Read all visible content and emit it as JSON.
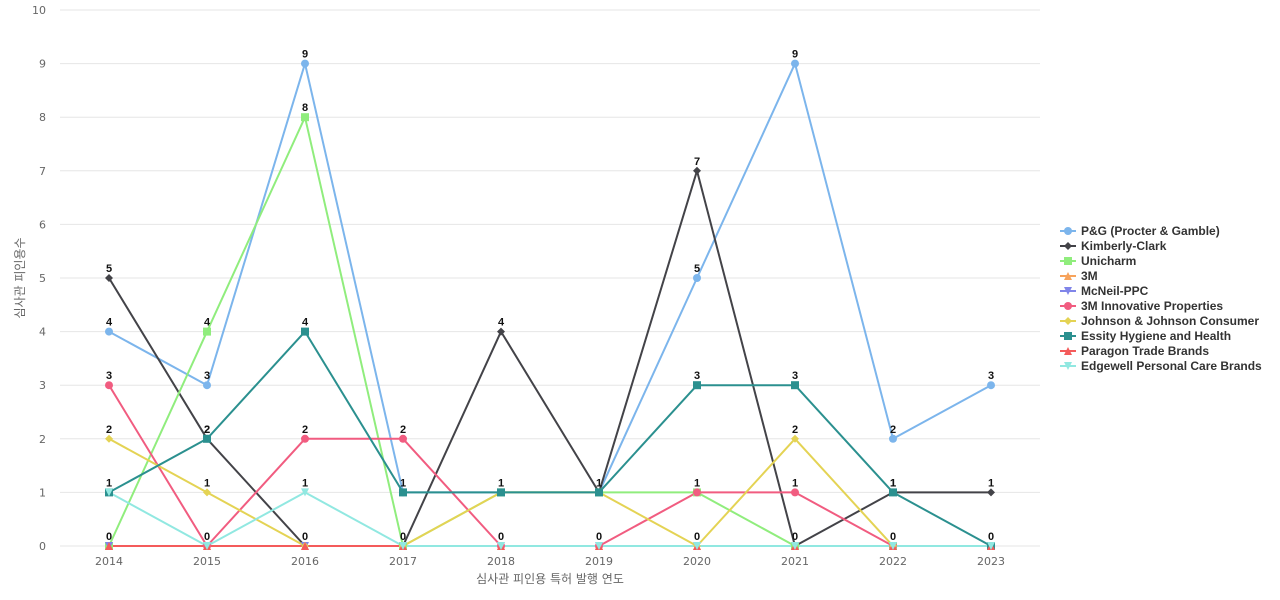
{
  "chart_data": {
    "type": "line",
    "xlabel": "심사관 피인용 특허 발행 연도",
    "ylabel": "심사관 피인용수",
    "ylim": [
      0,
      10
    ],
    "yticks": [
      0,
      1,
      2,
      3,
      4,
      5,
      6,
      7,
      8,
      9,
      10
    ],
    "categories": [
      "2014",
      "2015",
      "2016",
      "2017",
      "2018",
      "2019",
      "2020",
      "2021",
      "2022",
      "2023"
    ],
    "grid": true,
    "legend_position": "right",
    "series": [
      {
        "name": "P&G (Procter & Gamble)",
        "color": "#7cb5ec",
        "marker": "circle",
        "values": [
          4,
          3,
          9,
          1,
          1,
          1,
          5,
          9,
          2,
          3
        ]
      },
      {
        "name": "Kimberly-Clark",
        "color": "#434348",
        "marker": "diamond",
        "values": [
          5,
          2,
          0,
          0,
          4,
          1,
          7,
          0,
          1,
          1
        ]
      },
      {
        "name": "Unicharm",
        "color": "#90ed7d",
        "marker": "square",
        "values": [
          0,
          4,
          8,
          0,
          1,
          1,
          1,
          0,
          0,
          0
        ]
      },
      {
        "name": "3M",
        "color": "#f7a35c",
        "marker": "triangle",
        "values": [
          0,
          0,
          0,
          0,
          0,
          0,
          0,
          0,
          0,
          0
        ]
      },
      {
        "name": "McNeil-PPC",
        "color": "#8085e9",
        "marker": "triangle-down",
        "values": [
          0,
          0,
          0,
          0,
          0,
          0,
          0,
          0,
          0,
          0
        ]
      },
      {
        "name": "3M Innovative Properties",
        "color": "#f15c80",
        "marker": "circle",
        "values": [
          3,
          0,
          2,
          2,
          0,
          0,
          1,
          1,
          0,
          0
        ]
      },
      {
        "name": "Johnson & Johnson Consumer",
        "color": "#e4d354",
        "marker": "diamond",
        "values": [
          2,
          1,
          0,
          0,
          1,
          1,
          0,
          2,
          0,
          0
        ]
      },
      {
        "name": "Essity Hygiene and Health",
        "color": "#2b908f",
        "marker": "square",
        "values": [
          1,
          2,
          4,
          1,
          1,
          1,
          3,
          3,
          1,
          0
        ]
      },
      {
        "name": "Paragon Trade Brands",
        "color": "#f45b5b",
        "marker": "triangle",
        "values": [
          0,
          0,
          0,
          0,
          0,
          0,
          0,
          0,
          0,
          0
        ]
      },
      {
        "name": "Edgewell Personal Care Brands",
        "color": "#91e8e1",
        "marker": "triangle-down",
        "values": [
          1,
          0,
          1,
          0,
          0,
          0,
          0,
          0,
          0,
          0
        ]
      }
    ],
    "data_labels": [
      {
        "series": 0,
        "index": 0,
        "text": "4"
      },
      {
        "series": 0,
        "index": 1,
        "text": "3"
      },
      {
        "series": 0,
        "index": 2,
        "text": "9"
      },
      {
        "series": 0,
        "index": 6,
        "text": "5"
      },
      {
        "series": 0,
        "index": 7,
        "text": "9"
      },
      {
        "series": 0,
        "index": 8,
        "text": "2"
      },
      {
        "series": 0,
        "index": 9,
        "text": "3"
      },
      {
        "series": 1,
        "index": 0,
        "text": "5"
      },
      {
        "series": 1,
        "index": 1,
        "text": "2"
      },
      {
        "series": 1,
        "index": 4,
        "text": "4"
      },
      {
        "series": 1,
        "index": 6,
        "text": "7"
      },
      {
        "series": 1,
        "index": 8,
        "text": "1"
      },
      {
        "series": 1,
        "index": 9,
        "text": "1"
      },
      {
        "series": 2,
        "index": 1,
        "text": "4"
      },
      {
        "series": 2,
        "index": 2,
        "text": "8"
      },
      {
        "series": 3,
        "index": 0,
        "text": "0"
      },
      {
        "series": 3,
        "index": 1,
        "text": "0"
      },
      {
        "series": 3,
        "index": 2,
        "text": "0"
      },
      {
        "series": 3,
        "index": 3,
        "text": "0"
      },
      {
        "series": 3,
        "index": 4,
        "text": "0"
      },
      {
        "series": 3,
        "index": 5,
        "text": "0"
      },
      {
        "series": 3,
        "index": 6,
        "text": "0"
      },
      {
        "series": 3,
        "index": 7,
        "text": "0"
      },
      {
        "series": 3,
        "index": 8,
        "text": "0"
      },
      {
        "series": 3,
        "index": 9,
        "text": "0"
      },
      {
        "series": 5,
        "index": 0,
        "text": "3"
      },
      {
        "series": 5,
        "index": 2,
        "text": "2"
      },
      {
        "series": 5,
        "index": 3,
        "text": "2"
      },
      {
        "series": 5,
        "index": 6,
        "text": "1"
      },
      {
        "series": 5,
        "index": 7,
        "text": "1"
      },
      {
        "series": 6,
        "index": 0,
        "text": "2"
      },
      {
        "series": 6,
        "index": 1,
        "text": "1"
      },
      {
        "series": 6,
        "index": 7,
        "text": "2"
      },
      {
        "series": 7,
        "index": 0,
        "text": "1"
      },
      {
        "series": 7,
        "index": 1,
        "text": "2"
      },
      {
        "series": 7,
        "index": 2,
        "text": "4"
      },
      {
        "series": 7,
        "index": 3,
        "text": "1"
      },
      {
        "series": 7,
        "index": 4,
        "text": "1"
      },
      {
        "series": 7,
        "index": 5,
        "text": "1"
      },
      {
        "series": 7,
        "index": 6,
        "text": "3"
      },
      {
        "series": 7,
        "index": 7,
        "text": "3"
      },
      {
        "series": 7,
        "index": 8,
        "text": "1"
      },
      {
        "series": 9,
        "index": 2,
        "text": "1"
      }
    ]
  }
}
